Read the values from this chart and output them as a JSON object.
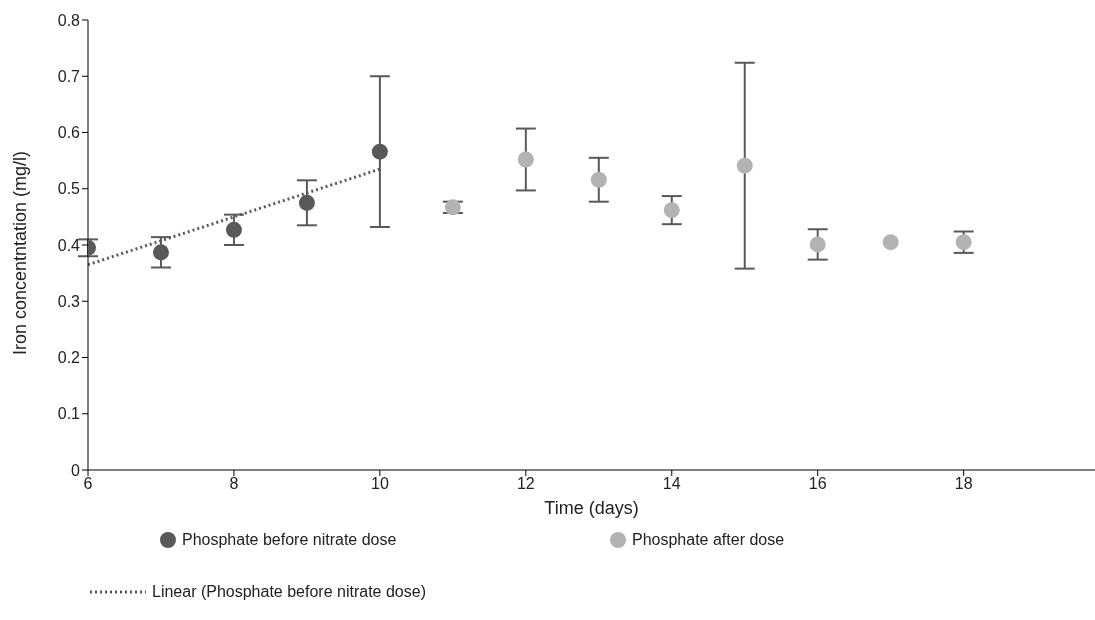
{
  "chart_data": {
    "type": "scatter",
    "xlabel": "Time (days)",
    "ylabel": "Iron concentntation (mg/l)",
    "xlim": [
      6,
      19.8
    ],
    "xticks": [
      6,
      8,
      10,
      12,
      14,
      16,
      18
    ],
    "ylim": [
      0,
      0.8
    ],
    "yticks": [
      0,
      0.1,
      0.2,
      0.3,
      0.4,
      0.5,
      0.6,
      0.7,
      0.8
    ],
    "grid": false,
    "legend": "bottom",
    "marker": "circle",
    "series": [
      {
        "name": "Phosphate before nitrate dose",
        "color": "#595959",
        "x": [
          6,
          7,
          8,
          9,
          10
        ],
        "values": [
          0.395,
          0.387,
          0.427,
          0.475,
          0.566
        ],
        "errors": [
          0.015,
          0.027,
          0.027,
          0.04,
          0.134
        ]
      },
      {
        "name": "Phosphate after dose",
        "color": "#b3b3b3",
        "x": [
          11,
          12,
          13,
          14,
          15,
          16,
          17,
          18
        ],
        "values": [
          0.467,
          0.552,
          0.516,
          0.462,
          0.541,
          0.401,
          0.405,
          0.405
        ],
        "errors": [
          0.01,
          0.055,
          0.039,
          0.025,
          0.183,
          0.027,
          null,
          0.019
        ]
      },
      {
        "name": "Linear (Phosphate before nitrate dose)",
        "type": "line",
        "line_style": "dotted",
        "marker": "none",
        "color": "#595959",
        "x": [
          6,
          10
        ],
        "values": [
          0.365,
          0.535
        ]
      }
    ]
  }
}
